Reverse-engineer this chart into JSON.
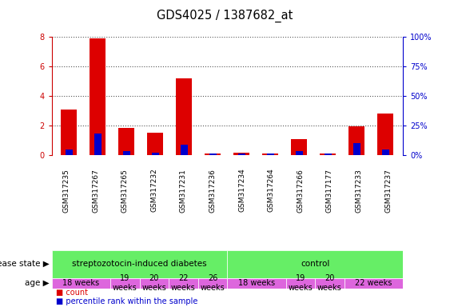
{
  "title": "GDS4025 / 1387682_at",
  "samples": [
    "GSM317235",
    "GSM317267",
    "GSM317265",
    "GSM317232",
    "GSM317231",
    "GSM317236",
    "GSM317234",
    "GSM317264",
    "GSM317266",
    "GSM317177",
    "GSM317233",
    "GSM317237"
  ],
  "count_values": [
    3.1,
    7.9,
    1.85,
    1.5,
    5.2,
    0.1,
    0.15,
    0.12,
    1.1,
    0.12,
    1.95,
    2.8
  ],
  "percentile_values": [
    5,
    18,
    3,
    2,
    9,
    1,
    1,
    1,
    3,
    1,
    10,
    5
  ],
  "ylim_left": [
    0,
    8
  ],
  "ylim_right": [
    0,
    100
  ],
  "yticks_left": [
    0,
    2,
    4,
    6,
    8
  ],
  "yticks_right": [
    0,
    25,
    50,
    75,
    100
  ],
  "yticklabels_right": [
    "0%",
    "25%",
    "50%",
    "75%",
    "100%"
  ],
  "bar_width": 0.55,
  "count_color": "#dd0000",
  "percentile_color": "#0000cc",
  "disease_state_color": "#66ee66",
  "age_color": "#dd66dd",
  "tick_bg_color": "#cccccc",
  "grid_color": "#555555",
  "background_color": "#ffffff",
  "tick_label_color_left": "#cc0000",
  "tick_label_color_right": "#0000cc",
  "disease_groups": [
    {
      "label": "streptozotocin-induced diabetes",
      "start": 0,
      "end": 6
    },
    {
      "label": "control",
      "start": 6,
      "end": 12
    }
  ],
  "age_groups": [
    {
      "label": "18 weeks",
      "start": 0,
      "end": 2
    },
    {
      "label": "19\nweeks",
      "start": 2,
      "end": 3
    },
    {
      "label": "20\nweeks",
      "start": 3,
      "end": 4
    },
    {
      "label": "22\nweeks",
      "start": 4,
      "end": 5
    },
    {
      "label": "26\nweeks",
      "start": 5,
      "end": 6
    },
    {
      "label": "18 weeks",
      "start": 6,
      "end": 8
    },
    {
      "label": "19\nweeks",
      "start": 8,
      "end": 9
    },
    {
      "label": "20\nweeks",
      "start": 9,
      "end": 10
    },
    {
      "label": "22 weeks",
      "start": 10,
      "end": 12
    }
  ]
}
